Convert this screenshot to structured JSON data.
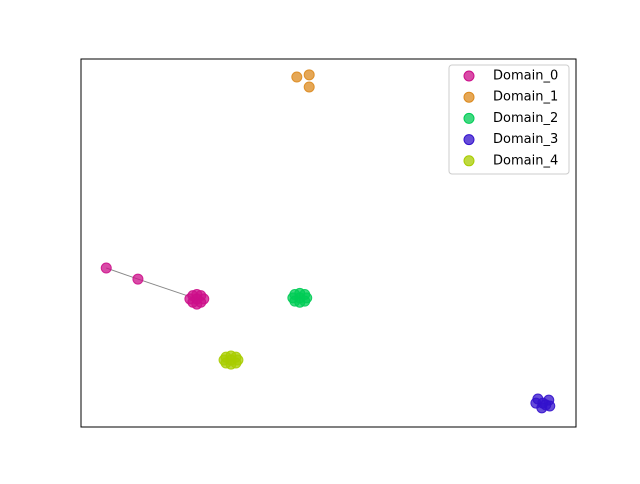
{
  "chart_data": {
    "type": "scatter",
    "xlim": [
      0,
      100
    ],
    "ylim": [
      0,
      100
    ],
    "legend": "upper right",
    "series": [
      {
        "name": "Domain_0",
        "color": "#cc0f8a",
        "x": [
          5.1,
          11.5,
          23.4,
          22.0,
          24.8,
          23.4,
          23.4,
          22.6,
          24.2,
          22.6,
          24.2
        ],
        "y": [
          43.2,
          40.2,
          34.8,
          34.8,
          34.8,
          36.0,
          33.4,
          35.7,
          35.7,
          33.9,
          33.9
        ]
      },
      {
        "name": "Domain_1",
        "color": "#dc8a1e",
        "x": [
          43.6,
          46.1,
          46.1
        ],
        "y": [
          95.1,
          95.7,
          92.4
        ]
      },
      {
        "name": "Domain_2",
        "color": "#00cc55",
        "x": [
          44.2,
          42.8,
          45.6,
          44.2,
          44.2,
          43.2,
          45.2,
          43.2,
          45.2
        ],
        "y": [
          35.1,
          35.1,
          35.1,
          36.3,
          33.9,
          36.0,
          36.0,
          34.2,
          34.2
        ]
      },
      {
        "name": "Domain_3",
        "color": "#3311cc",
        "x": [
          93.3,
          91.9,
          94.5,
          93.1,
          94.7,
          92.3,
          93.9
        ],
        "y": [
          6.5,
          6.5,
          7.3,
          5.2,
          5.7,
          7.6,
          6.0
        ]
      },
      {
        "name": "Domain_4",
        "color": "#a8cc00",
        "x": [
          30.3,
          28.9,
          31.7,
          30.3,
          30.3,
          29.3,
          31.3,
          29.3,
          31.3
        ],
        "y": [
          18.2,
          18.2,
          18.2,
          19.3,
          17.1,
          19.0,
          19.0,
          17.4,
          17.4
        ]
      }
    ]
  }
}
